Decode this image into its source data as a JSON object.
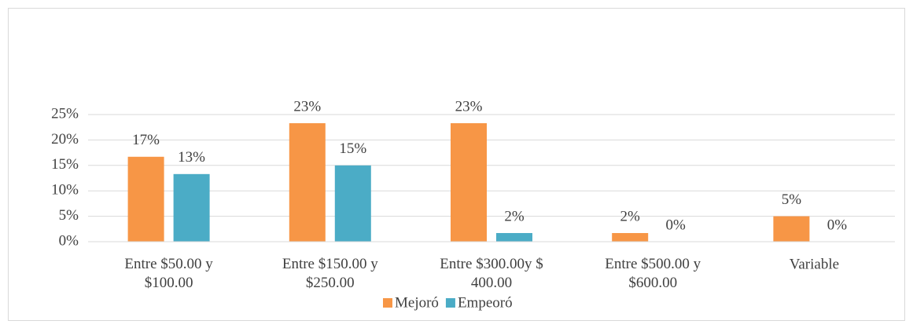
{
  "chart_data": {
    "type": "bar",
    "categories": [
      "Entre $50.00 y\n$100.00",
      "Entre $150.00 y\n$250.00",
      "Entre $300.00y $\n400.00",
      "Entre $500.00 y\n$600.00",
      "Variable"
    ],
    "series": [
      {
        "name": "Mejoró",
        "color": "#f79646",
        "values": [
          16.7,
          23.3,
          23.3,
          1.7,
          5
        ],
        "value_labels": [
          "17%",
          "23%",
          "23%",
          "2%",
          "5%"
        ]
      },
      {
        "name": "Empeoró",
        "color": "#4bacc6",
        "values": [
          13.3,
          15,
          1.7,
          0,
          0
        ],
        "value_labels": [
          "13%",
          "15%",
          "2%",
          "0%",
          "0%"
        ]
      }
    ],
    "ylim": [
      0,
      25
    ],
    "yticks": [
      {
        "value": 0,
        "label": "0%"
      },
      {
        "value": 5,
        "label": "5%"
      },
      {
        "value": 10,
        "label": "10%"
      },
      {
        "value": 15,
        "label": "15%"
      },
      {
        "value": 20,
        "label": "20%"
      },
      {
        "value": 25,
        "label": "25%"
      }
    ],
    "grid": true,
    "legend": "bottom"
  }
}
